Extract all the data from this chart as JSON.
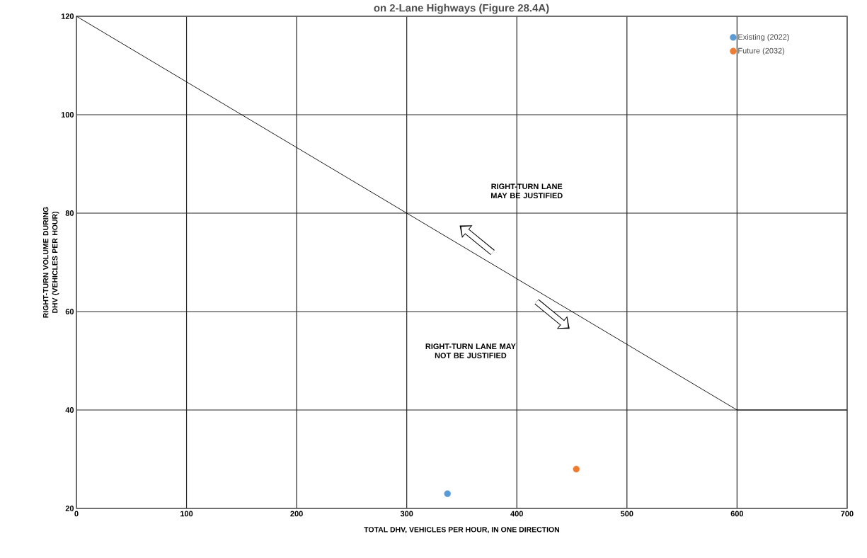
{
  "chart_data": {
    "type": "scatter",
    "title": "on 2-Lane Highways (Figure 28.4A)",
    "xlabel": "TOTAL DHV, VEHICLES PER HOUR, IN ONE DIRECTION",
    "ylabel": "RIGHT-TURN VOLUME DURING DHV (VEHICLES PER HOUR)",
    "annotations": [
      "RIGHT-TURN LANE MAY BE JUSTIFIED",
      "RIGHT-TURN LANE MAY NOT BE JUSTIFIED"
    ],
    "series": [
      {
        "type": "line",
        "color": "#000000",
        "marker": "none",
        "x": [
          0,
          600,
          700
        ],
        "values": [
          120,
          40,
          40
        ]
      },
      {
        "name": "Existing (2022)",
        "color": "#5b9bd5",
        "marker": "circle",
        "x": [
          337
        ],
        "values": [
          23
        ]
      },
      {
        "name": "Future (2032)",
        "color": "#ed7d31",
        "marker": "circle",
        "x": [
          454
        ],
        "values": [
          28
        ]
      }
    ],
    "xlim": [
      0,
      700
    ],
    "ylim": [
      20,
      120
    ],
    "xticks": [
      0,
      100,
      200,
      300,
      400,
      500,
      600,
      700
    ],
    "yticks": [
      20,
      40,
      60,
      80,
      100,
      120
    ],
    "grid": true,
    "legend": "top right"
  }
}
